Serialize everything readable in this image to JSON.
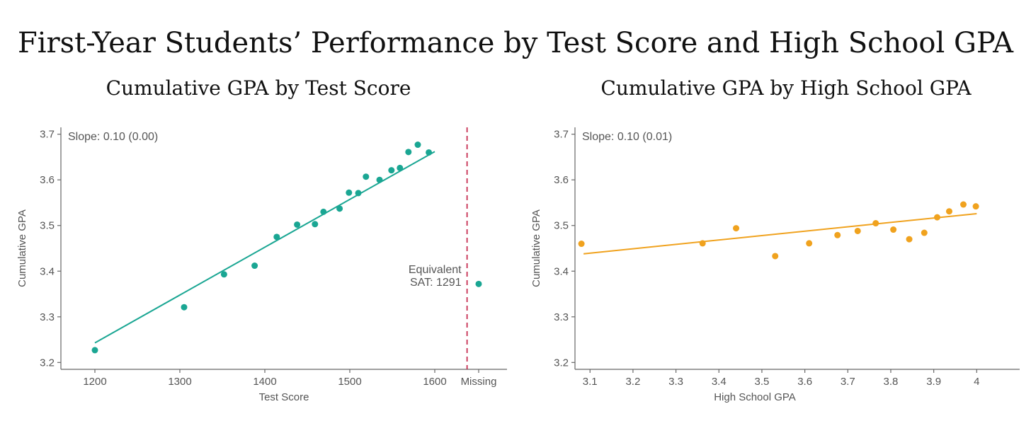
{
  "figure_title": "First-Year Students’ Performance by Test Score and High School GPA",
  "chart_data": [
    {
      "type": "scatter",
      "title": "Cumulative GPA by Test Score",
      "xlabel": "Test Score",
      "ylabel": "Cumulative GPA",
      "xlim": [
        1160,
        1685
      ],
      "ylim": [
        3.185,
        3.715
      ],
      "xticks": [
        1200,
        1300,
        1400,
        1500,
        1600
      ],
      "yticks": [
        3.2,
        3.3,
        3.4,
        3.5,
        3.6,
        3.7
      ],
      "extra_xtick_label": "Missing",
      "color": "#1aa693",
      "annotation_slope": "Slope: 0.10 (0.00)",
      "annotation_equivalent": [
        "Equivalent",
        "SAT: 1291"
      ],
      "reference_line": {
        "x": 1638,
        "color": "#c0143c",
        "style": "dashed"
      },
      "fit_line": {
        "x": [
          1200,
          1600
        ],
        "y": [
          3.243,
          3.662
        ]
      },
      "points": [
        {
          "x": 1200,
          "y": 3.227
        },
        {
          "x": 1305,
          "y": 3.321
        },
        {
          "x": 1352,
          "y": 3.393
        },
        {
          "x": 1388,
          "y": 3.412
        },
        {
          "x": 1414,
          "y": 3.475
        },
        {
          "x": 1438,
          "y": 3.502
        },
        {
          "x": 1459,
          "y": 3.503
        },
        {
          "x": 1469,
          "y": 3.53
        },
        {
          "x": 1488,
          "y": 3.537
        },
        {
          "x": 1499,
          "y": 3.572
        },
        {
          "x": 1510,
          "y": 3.571
        },
        {
          "x": 1519,
          "y": 3.607
        },
        {
          "x": 1535,
          "y": 3.6
        },
        {
          "x": 1549,
          "y": 3.621
        },
        {
          "x": 1559,
          "y": 3.626
        },
        {
          "x": 1569,
          "y": 3.661
        },
        {
          "x": 1580,
          "y": 3.677
        },
        {
          "x": 1593,
          "y": 3.66
        }
      ],
      "missing_point": {
        "x_label": "Missing",
        "y": 3.372
      }
    },
    {
      "type": "scatter",
      "title": "Cumulative GPA by High School GPA",
      "xlabel": "High School GPA",
      "ylabel": "Cumulative GPA",
      "xlim": [
        3.065,
        4.1
      ],
      "ylim": [
        3.185,
        3.715
      ],
      "xticks": [
        3.1,
        3.2,
        3.3,
        3.4,
        3.5,
        3.6,
        3.7,
        3.8,
        3.9,
        4
      ],
      "yticks": [
        3.2,
        3.3,
        3.4,
        3.5,
        3.6,
        3.7
      ],
      "color": "#f0a21e",
      "annotation_slope": "Slope: 0.10 (0.01)",
      "fit_line": {
        "x": [
          3.085,
          4.0
        ],
        "y": [
          3.438,
          3.526
        ]
      },
      "points": [
        {
          "x": 3.08,
          "y": 3.46
        },
        {
          "x": 3.362,
          "y": 3.461
        },
        {
          "x": 3.44,
          "y": 3.494
        },
        {
          "x": 3.531,
          "y": 3.433
        },
        {
          "x": 3.61,
          "y": 3.461
        },
        {
          "x": 3.676,
          "y": 3.479
        },
        {
          "x": 3.723,
          "y": 3.488
        },
        {
          "x": 3.765,
          "y": 3.505
        },
        {
          "x": 3.806,
          "y": 3.491
        },
        {
          "x": 3.843,
          "y": 3.47
        },
        {
          "x": 3.878,
          "y": 3.484
        },
        {
          "x": 3.908,
          "y": 3.518
        },
        {
          "x": 3.936,
          "y": 3.531
        },
        {
          "x": 3.969,
          "y": 3.546
        },
        {
          "x": 3.998,
          "y": 3.542
        }
      ]
    }
  ]
}
